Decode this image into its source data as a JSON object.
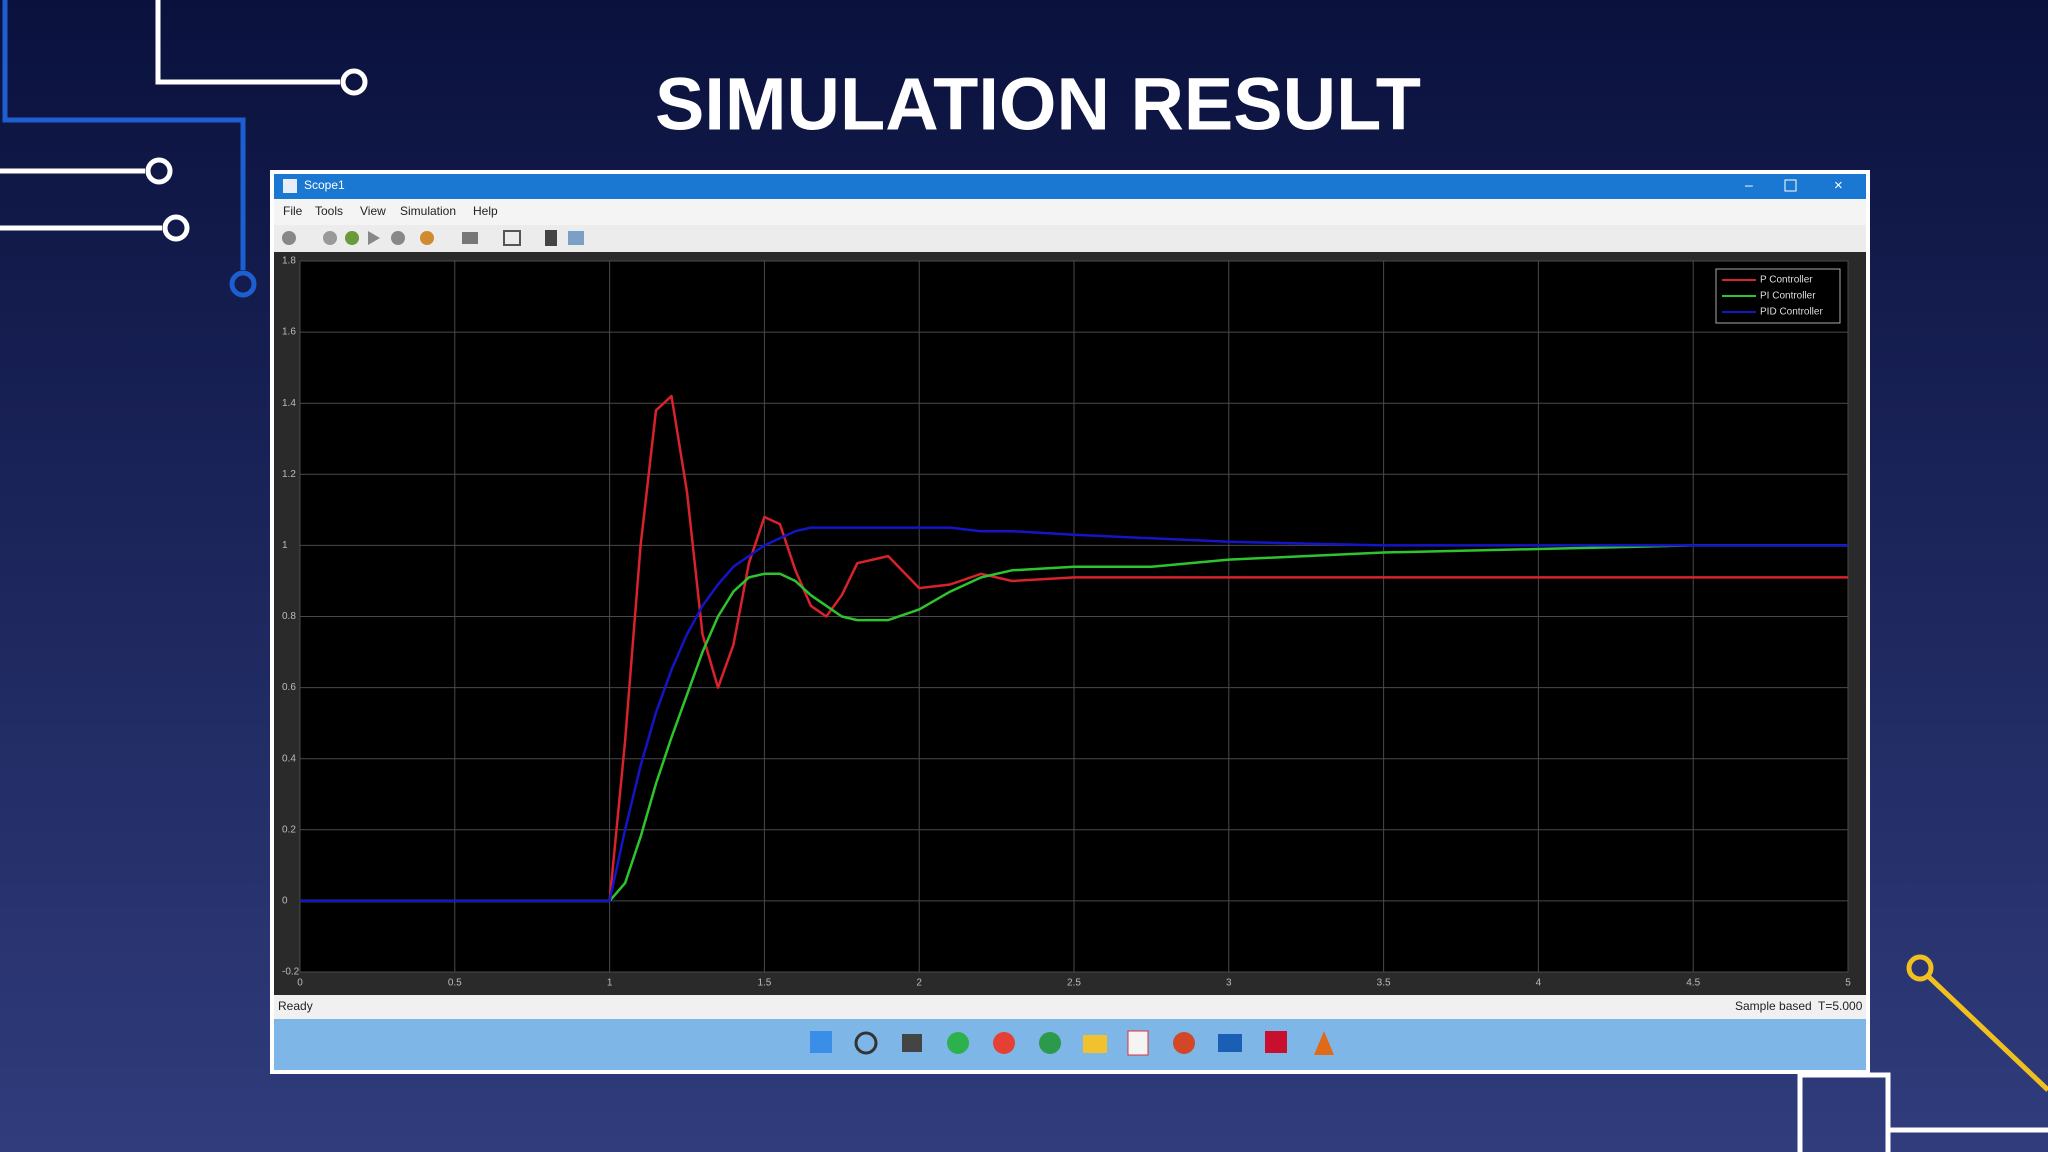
{
  "title": "SIMULATION RESULT",
  "window": {
    "title": "Scope1",
    "menu": [
      "File",
      "Tools",
      "View",
      "Simulation",
      "Help"
    ],
    "status": "Ready",
    "status_right": [
      "Sample based",
      "T=5.000"
    ]
  },
  "chart_data": {
    "type": "line",
    "x": [
      0,
      0.5,
      1,
      1.05,
      1.1,
      1.15,
      1.2,
      1.25,
      1.3,
      1.35,
      1.4,
      1.45,
      1.5,
      1.55,
      1.6,
      1.65,
      1.7,
      1.75,
      1.8,
      1.9,
      2.0,
      2.1,
      2.2,
      2.3,
      2.5,
      2.75,
      3.0,
      3.5,
      4.0,
      4.5,
      5.0
    ],
    "series": [
      {
        "name": "P Controller",
        "color": "#d8222c",
        "values": [
          0,
          0,
          0,
          0.45,
          1.0,
          1.38,
          1.42,
          1.15,
          0.75,
          0.6,
          0.72,
          0.95,
          1.08,
          1.06,
          0.93,
          0.83,
          0.8,
          0.86,
          0.95,
          0.97,
          0.88,
          0.89,
          0.92,
          0.9,
          0.91,
          0.91,
          0.91,
          0.91,
          0.91,
          0.91,
          0.91
        ]
      },
      {
        "name": "PI Controller",
        "color": "#2ec42e",
        "values": [
          0,
          0,
          0,
          0.05,
          0.18,
          0.33,
          0.46,
          0.58,
          0.7,
          0.8,
          0.87,
          0.91,
          0.92,
          0.92,
          0.9,
          0.86,
          0.83,
          0.8,
          0.79,
          0.79,
          0.82,
          0.87,
          0.91,
          0.93,
          0.94,
          0.94,
          0.96,
          0.98,
          0.99,
          1.0,
          1.0
        ]
      },
      {
        "name": "PID Controller",
        "color": "#1414c8",
        "values": [
          0,
          0,
          0,
          0.2,
          0.38,
          0.53,
          0.65,
          0.75,
          0.83,
          0.89,
          0.94,
          0.97,
          1.0,
          1.02,
          1.04,
          1.05,
          1.05,
          1.05,
          1.05,
          1.05,
          1.05,
          1.05,
          1.04,
          1.04,
          1.03,
          1.02,
          1.01,
          1.0,
          1.0,
          1.0,
          1.0
        ]
      }
    ],
    "xlim": [
      0,
      5
    ],
    "xticks": [
      0,
      0.5,
      1,
      1.5,
      2,
      2.5,
      3,
      3.5,
      4,
      4.5,
      5
    ],
    "ylim": [
      -0.2,
      1.8
    ],
    "yticks": [
      -0.2,
      0,
      0.2,
      0.4,
      0.6,
      0.8,
      1,
      1.2,
      1.4,
      1.6,
      1.8
    ],
    "grid": true,
    "legend": "top-right"
  }
}
